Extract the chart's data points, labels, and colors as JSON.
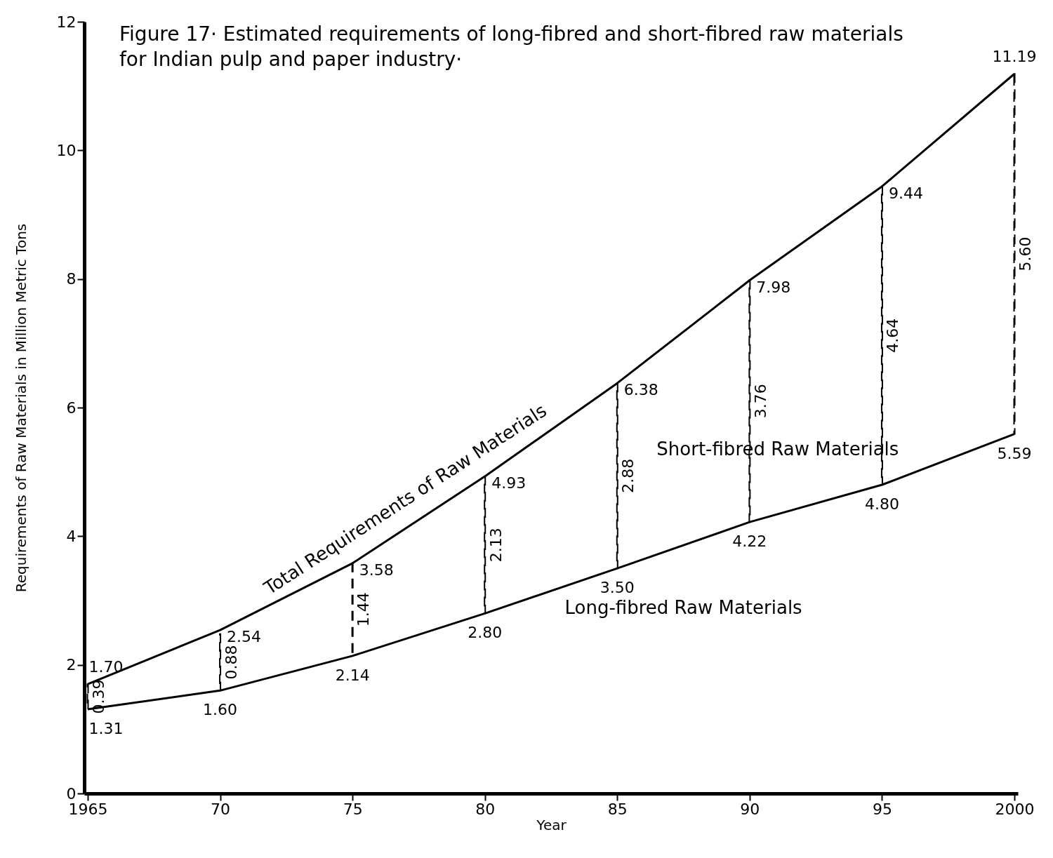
{
  "chart_data": {
    "type": "line",
    "title": "Figure 17· Estimated requirements of long-fibred and short-fibred raw materials for Indian pulp and paper industry·",
    "xlabel": "Year",
    "ylabel": "Requirements of Raw Materials in Million Metric Tons",
    "x": [
      1965,
      1970,
      1975,
      1980,
      1985,
      1990,
      1995,
      2000
    ],
    "series": [
      {
        "name": "Total Requirements of Raw Materials",
        "color": "#000000",
        "values": [
          1.7,
          2.54,
          3.58,
          4.93,
          6.38,
          7.98,
          9.44,
          11.19
        ],
        "value_labels": [
          "1.70",
          "2.54",
          "3.58",
          "4.93",
          "6.38",
          "7.98",
          "9.44",
          "11.19"
        ]
      },
      {
        "name": "Long-fibred Raw Materials",
        "color": "#000000",
        "values": [
          1.31,
          1.6,
          2.14,
          2.8,
          3.5,
          4.22,
          4.8,
          5.59
        ],
        "value_labels": [
          "1.31",
          "1.60",
          "2.14",
          "2.80",
          "3.50",
          "4.22",
          "4.80",
          "5.59"
        ]
      },
      {
        "name": "Short-fibred Raw Materials",
        "type": "bar",
        "color": "#000000",
        "base": [
          1.31,
          1.6,
          2.14,
          2.8,
          3.5,
          4.22,
          4.8,
          5.59
        ],
        "values": [
          0.39,
          0.88,
          1.44,
          2.13,
          2.88,
          3.76,
          4.64,
          5.6
        ],
        "value_labels": [
          "0.39",
          "0.88",
          "1.44",
          "2.13",
          "2.88",
          "3.76",
          "4.64",
          "5.60"
        ],
        "line_style": "dashed"
      }
    ],
    "xlim": [
      1965,
      2000
    ],
    "xticks": [
      {
        "value": 1965,
        "label": "1965"
      },
      {
        "value": 1970,
        "label": "70"
      },
      {
        "value": 1975,
        "label": "75"
      },
      {
        "value": 1980,
        "label": "80"
      },
      {
        "value": 1985,
        "label": "85"
      },
      {
        "value": 1990,
        "label": "90"
      },
      {
        "value": 1995,
        "label": "95"
      },
      {
        "value": 2000,
        "label": "2000"
      }
    ],
    "ylim": [
      0,
      12
    ],
    "yticks": [
      0,
      2,
      4,
      6,
      8,
      10,
      12
    ],
    "grid": false,
    "marker": "none",
    "line_style": "solid"
  }
}
